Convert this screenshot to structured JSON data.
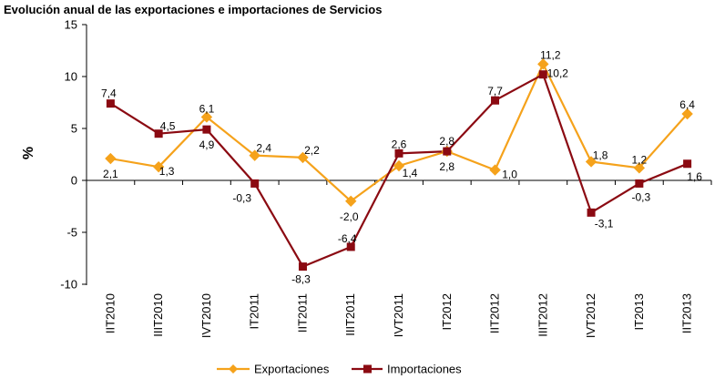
{
  "chart_data": {
    "type": "line",
    "title": "Evolución anual de las exportaciones e importaciones de Servicios",
    "ylabel": "%",
    "xlabel": "",
    "ylim": [
      -10,
      15
    ],
    "yticks": [
      -10,
      -5,
      0,
      5,
      10,
      15
    ],
    "grid": false,
    "legend_position": "bottom",
    "categories": [
      "IIT2010",
      "IIIT2010",
      "IVT2010",
      "IT2011",
      "IIT2011",
      "IIIT2011",
      "IVT2011",
      "IT2012",
      "IIT2012",
      "IIIT2012",
      "IVT2012",
      "IT2013",
      "IIT2013"
    ],
    "series": [
      {
        "name": "Exportaciones",
        "color": "#F5A21B",
        "marker": "diamond",
        "values": [
          2.1,
          1.3,
          6.1,
          2.4,
          2.2,
          -2.0,
          1.4,
          2.8,
          1.0,
          11.2,
          1.8,
          1.2,
          6.4
        ],
        "labels": [
          "2,1",
          "1,3",
          "6,1",
          "2,4",
          "2,2",
          "-2,0",
          "1,4",
          "2,8",
          "1,0",
          "11,2",
          "1,8",
          "1,2",
          "6,4"
        ]
      },
      {
        "name": "Importaciones",
        "color": "#8B0A12",
        "marker": "square",
        "values": [
          7.4,
          4.5,
          4.9,
          -0.3,
          -8.3,
          -6.4,
          2.6,
          2.8,
          7.7,
          10.2,
          -3.1,
          -0.3,
          1.6
        ],
        "labels": [
          "7,4",
          "4,5",
          "4,9",
          "-0,3",
          "-8,3",
          "-6,4",
          "2,6",
          "2,8",
          "7,7",
          "10,2",
          "-3,1",
          "-0,3",
          "1,6"
        ]
      }
    ]
  }
}
